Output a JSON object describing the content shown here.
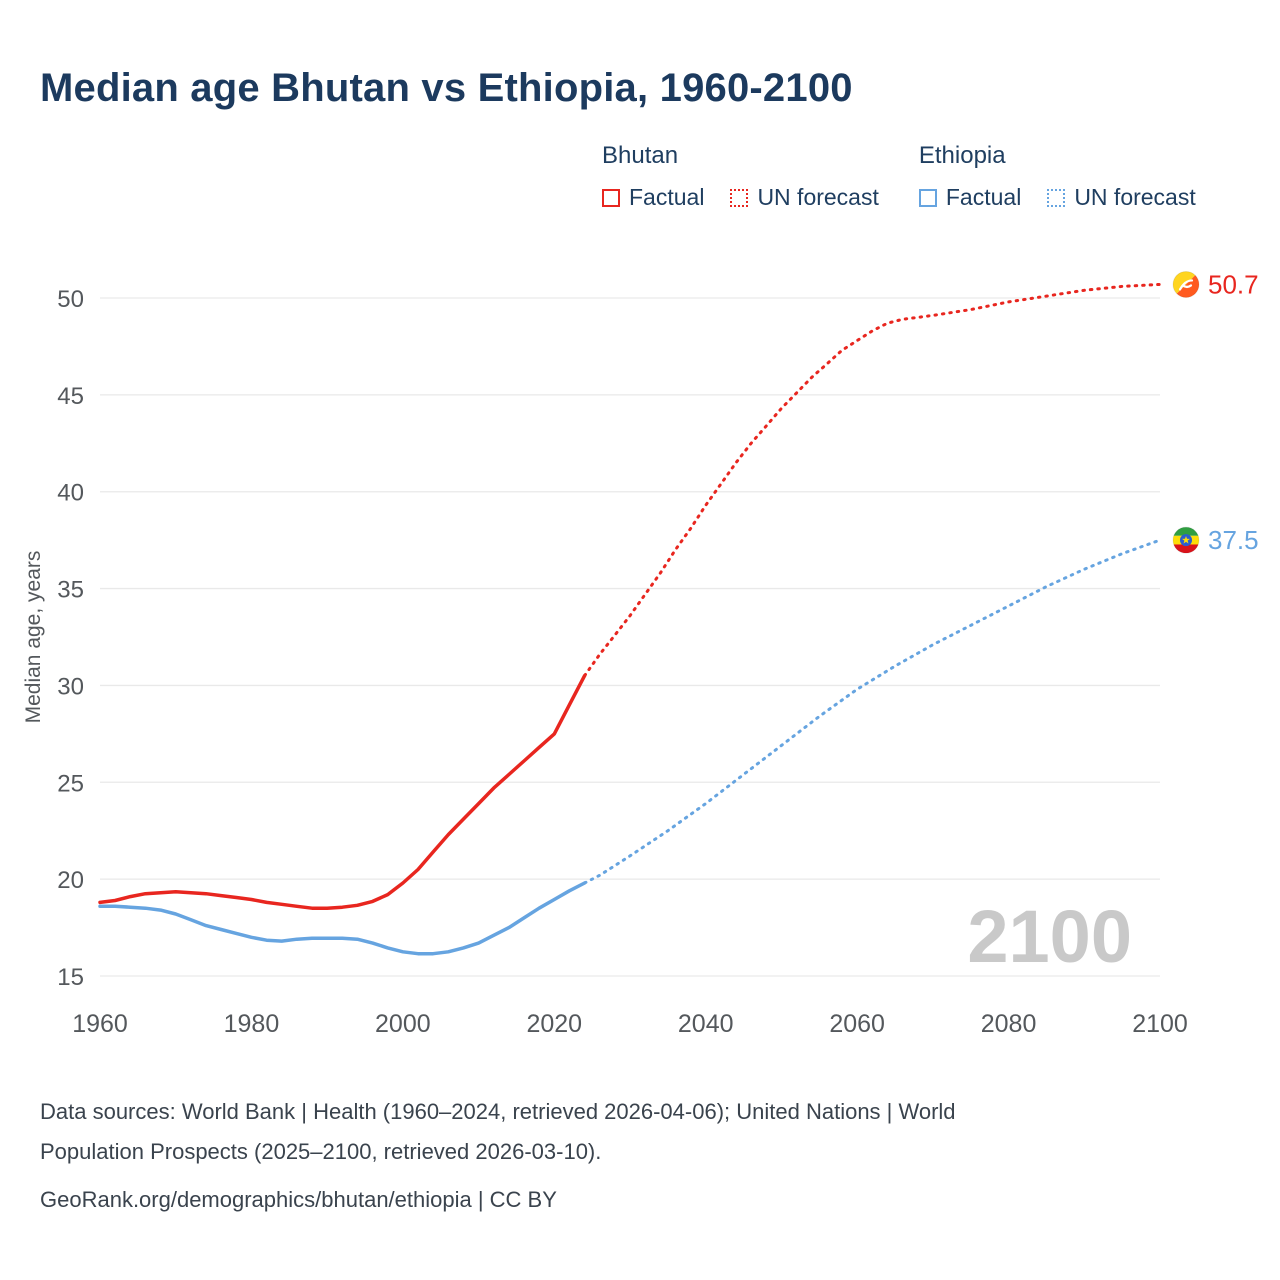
{
  "title": "Median age Bhutan vs Ethiopia, 1960-2100",
  "legend": {
    "groups": [
      {
        "label": "Bhutan",
        "color": "#e8261f",
        "items": [
          {
            "label": "Factual",
            "style": "solid"
          },
          {
            "label": "UN forecast",
            "style": "dotted"
          }
        ]
      },
      {
        "label": "Ethiopia",
        "color": "#66a4e0",
        "items": [
          {
            "label": "Factual",
            "style": "solid"
          },
          {
            "label": "UN forecast",
            "style": "dotted"
          }
        ]
      }
    ]
  },
  "footer": {
    "lines": [
      "Data sources: World Bank | Health (1960–2024, retrieved 2026-04-06); United Nations | World",
      "Population Prospects (2025–2100, retrieved 2026-03-10).",
      "GeoRank.org/demographics/bhutan/ethiopia | CC BY"
    ]
  },
  "chart_data": {
    "type": "line",
    "title": "Median age Bhutan vs Ethiopia, 1960-2100",
    "xlabel": "",
    "ylabel": "Median age, years",
    "xlim": [
      1960,
      2100
    ],
    "ylim": [
      15,
      50
    ],
    "xticks": [
      1960,
      1980,
      2000,
      2020,
      2040,
      2060,
      2080,
      2100
    ],
    "yticks": [
      15,
      20,
      25,
      30,
      35,
      40,
      45,
      50
    ],
    "grid": "horizontal",
    "legend_position": "top-right",
    "watermark": "2100",
    "colors": {
      "bhutan": "#e8261f",
      "ethiopia": "#66a4e0",
      "grid": "#e9e9e9",
      "axis_text": "#54585c",
      "watermark": "#c9c9c9",
      "title": "#1c3a5e"
    },
    "series": [
      {
        "name": "Bhutan Factual",
        "color": "#e8261f",
        "style": "solid",
        "x": [
          1960,
          1962,
          1964,
          1966,
          1968,
          1970,
          1972,
          1974,
          1976,
          1978,
          1980,
          1982,
          1984,
          1986,
          1988,
          1990,
          1992,
          1994,
          1996,
          1998,
          2000,
          2002,
          2004,
          2006,
          2008,
          2010,
          2012,
          2014,
          2016,
          2018,
          2020,
          2022,
          2024
        ],
        "y": [
          18.8,
          18.9,
          19.1,
          19.25,
          19.3,
          19.35,
          19.3,
          19.25,
          19.15,
          19.05,
          18.95,
          18.8,
          18.7,
          18.6,
          18.5,
          18.5,
          18.55,
          18.65,
          18.85,
          19.2,
          19.8,
          20.5,
          21.4,
          22.3,
          23.1,
          23.9,
          24.7,
          25.4,
          26.1,
          26.8,
          27.5,
          29.0,
          30.5
        ],
        "segment": "factual"
      },
      {
        "name": "Bhutan UN forecast",
        "color": "#e8261f",
        "style": "dotted",
        "x": [
          2024,
          2026,
          2028,
          2030,
          2032,
          2034,
          2036,
          2038,
          2040,
          2042,
          2044,
          2046,
          2048,
          2050,
          2052,
          2054,
          2056,
          2058,
          2060,
          2062,
          2064,
          2066,
          2068,
          2070,
          2075,
          2080,
          2085,
          2090,
          2095,
          2100
        ],
        "y": [
          30.5,
          31.6,
          32.6,
          33.6,
          34.7,
          35.8,
          37.0,
          38.1,
          39.3,
          40.4,
          41.5,
          42.5,
          43.4,
          44.3,
          45.1,
          45.9,
          46.6,
          47.3,
          47.8,
          48.3,
          48.7,
          48.9,
          49.0,
          49.1,
          49.4,
          49.8,
          50.1,
          50.4,
          50.6,
          50.7
        ],
        "segment": "forecast"
      },
      {
        "name": "Ethiopia Factual",
        "color": "#66a4e0",
        "style": "solid",
        "x": [
          1960,
          1962,
          1964,
          1966,
          1968,
          1970,
          1972,
          1974,
          1976,
          1978,
          1980,
          1982,
          1984,
          1986,
          1988,
          1990,
          1992,
          1994,
          1996,
          1998,
          2000,
          2002,
          2004,
          2006,
          2008,
          2010,
          2012,
          2014,
          2016,
          2018,
          2020,
          2022,
          2024
        ],
        "y": [
          18.6,
          18.6,
          18.55,
          18.5,
          18.4,
          18.2,
          17.9,
          17.6,
          17.4,
          17.2,
          17.0,
          16.85,
          16.8,
          16.9,
          16.95,
          16.95,
          16.95,
          16.9,
          16.7,
          16.45,
          16.25,
          16.15,
          16.15,
          16.25,
          16.45,
          16.7,
          17.1,
          17.5,
          18.0,
          18.5,
          18.95,
          19.4,
          19.8
        ],
        "segment": "factual"
      },
      {
        "name": "Ethiopia UN forecast",
        "color": "#66a4e0",
        "style": "dotted",
        "x": [
          2024,
          2026,
          2028,
          2030,
          2035,
          2040,
          2045,
          2050,
          2055,
          2060,
          2065,
          2070,
          2075,
          2080,
          2085,
          2090,
          2095,
          2100
        ],
        "y": [
          19.8,
          20.2,
          20.7,
          21.2,
          22.5,
          23.9,
          25.4,
          26.9,
          28.4,
          29.8,
          31.0,
          32.1,
          33.1,
          34.1,
          35.1,
          36.0,
          36.8,
          37.5
        ],
        "segment": "forecast"
      }
    ],
    "end_labels": [
      {
        "text": "50.7",
        "value": 50.7,
        "color": "#e8261f",
        "flag": "bhutan"
      },
      {
        "text": "37.5",
        "value": 37.5,
        "color": "#66a4e0",
        "flag": "ethiopia"
      }
    ]
  }
}
